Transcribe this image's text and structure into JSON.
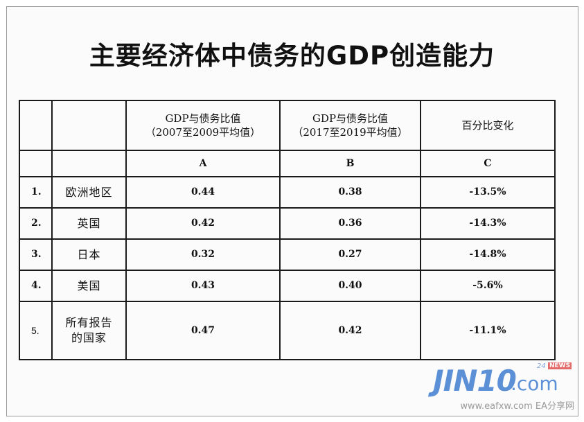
{
  "title": "主要经济体中债务的GDP创造能力",
  "table": {
    "header": {
      "col_a": [
        "GDP与债务比值",
        "（2007至2009平均值）"
      ],
      "col_b": [
        "GDP与债务比值",
        "（2017至2019平均值）"
      ],
      "col_c": "百分比变化"
    },
    "letters": {
      "a": "A",
      "b": "B",
      "c": "C"
    },
    "rows": [
      {
        "num": "1.",
        "region": "欧洲地区",
        "a": "0.44",
        "b": "0.38",
        "c": "-13.5%"
      },
      {
        "num": "2.",
        "region": "英国",
        "a": "0.42",
        "b": "0.36",
        "c": "-14.3%"
      },
      {
        "num": "3.",
        "region": "日本",
        "a": "0.32",
        "b": "0.27",
        "c": "-14.8%"
      },
      {
        "num": "4.",
        "region": "美国",
        "a": "0.43",
        "b": "0.40",
        "c": "-5.6%"
      },
      {
        "num": "5.",
        "region": [
          "所有报告",
          "的国家"
        ],
        "a": "0.47",
        "b": "0.42",
        "c": "-11.1%"
      }
    ]
  },
  "watermark": {
    "logo": "JIN10",
    "domain": ".com",
    "badge_num": "24",
    "badge": "NEWS",
    "site": "www.eafxw.com  EA分享网"
  }
}
